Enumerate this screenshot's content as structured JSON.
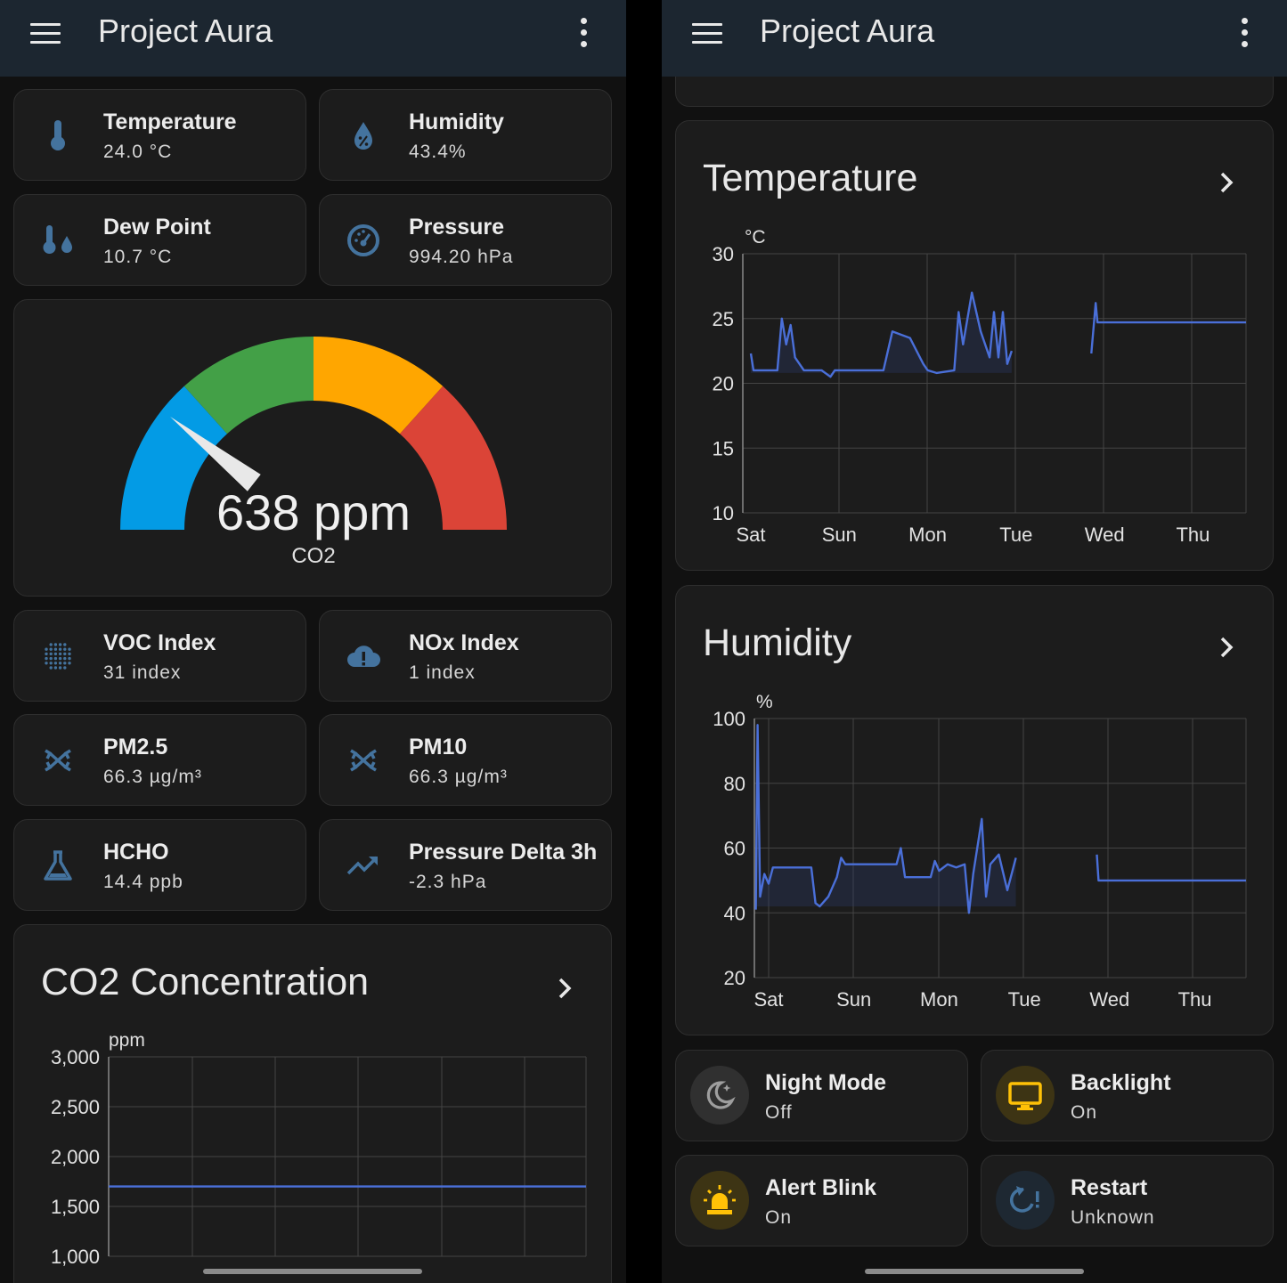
{
  "app": {
    "title": "Project Aura"
  },
  "left": {
    "tiles": [
      {
        "name": "Temperature",
        "state": "24.0 °C",
        "icon": "thermometer-icon"
      },
      {
        "name": "Humidity",
        "state": "43.4%",
        "icon": "water-percent-icon"
      },
      {
        "name": "Dew Point",
        "state": "10.7 °C",
        "icon": "dew-point-icon"
      },
      {
        "name": "Pressure",
        "state": "994.20 hPa",
        "icon": "gauge-icon"
      }
    ],
    "gauge": {
      "value": 638,
      "display": "638 ppm",
      "label": "CO2",
      "min": 0,
      "max": 3000,
      "segments": [
        {
          "from": 0,
          "to": 800,
          "color": "#039be5"
        },
        {
          "from": 800,
          "to": 1500,
          "color": "#43a047"
        },
        {
          "from": 1500,
          "to": 2200,
          "color": "#ffa600"
        },
        {
          "from": 2200,
          "to": 3000,
          "color": "#db4437"
        }
      ]
    },
    "tiles2": [
      {
        "name": "VOC Index",
        "state": "31 index",
        "icon": "dots-grid-icon"
      },
      {
        "name": "NOx Index",
        "state": "1 index",
        "icon": "cloud-alert-icon"
      },
      {
        "name": "PM2.5",
        "state": "66.3 µg/m³",
        "icon": "molecule-icon"
      },
      {
        "name": "PM10",
        "state": "66.3 µg/m³",
        "icon": "molecule-icon"
      },
      {
        "name": "HCHO",
        "state": "14.4 ppb",
        "icon": "flask-icon"
      },
      {
        "name": "Pressure Delta 3h",
        "state": "-2.3 hPa",
        "icon": "trending-up-icon"
      }
    ],
    "co2_card": {
      "title": "CO2 Concentration",
      "unit": "ppm"
    }
  },
  "right": {
    "temp_card": {
      "title": "Temperature",
      "unit": "°C"
    },
    "hum_card": {
      "title": "Humidity",
      "unit": "%"
    },
    "toggles": [
      {
        "name": "Night Mode",
        "state": "Off",
        "icon": "weather-night-icon",
        "color": "#9e9e9e",
        "bg": "#303030"
      },
      {
        "name": "Backlight",
        "state": "On",
        "icon": "monitor-icon",
        "color": "#ffc107",
        "bg": "#3d3414"
      },
      {
        "name": "Alert Blink",
        "state": "On",
        "icon": "alarm-light-icon",
        "color": "#ffc107",
        "bg": "#3d3414"
      },
      {
        "name": "Restart",
        "state": "Unknown",
        "icon": "restart-alert-icon",
        "color": "#44739e",
        "bg": "#1e2832"
      }
    ]
  },
  "chart_data": [
    {
      "type": "line",
      "title": "CO2 Concentration",
      "ylabel": "ppm",
      "ylim": [
        1000,
        3000
      ],
      "yticks": [
        "3,000",
        "2,500",
        "2,000",
        "1,500",
        "1,000"
      ],
      "grid": true,
      "series": [
        {
          "values": [
            1700,
            1700
          ]
        }
      ]
    },
    {
      "type": "line",
      "title": "Temperature",
      "ylabel": "°C",
      "ylim": [
        10,
        30
      ],
      "yticks": [
        "30",
        "25",
        "20",
        "15",
        "10"
      ],
      "categories": [
        "Sat",
        "Sun",
        "Mon",
        "Tue",
        "Wed",
        "Thu"
      ],
      "grid": true,
      "series": [
        {
          "segments": [
            {
              "x": [
                0.0,
                0.03,
                0.05,
                0.3,
                0.35,
                0.4,
                0.45,
                0.5,
                0.6,
                0.8,
                0.9,
                0.95,
                1.0,
                1.5,
                1.6,
                1.8,
                1.95,
                2.0,
                2.1,
                2.3,
                2.35,
                2.4,
                2.5,
                2.6,
                2.7,
                2.75,
                2.8,
                2.85,
                2.9,
                2.95
              ],
              "y": [
                22.3,
                21.0,
                21.0,
                21.0,
                25.0,
                23.0,
                24.5,
                22.0,
                21.0,
                21.0,
                20.5,
                21.0,
                21.0,
                21.0,
                24.0,
                23.5,
                21.5,
                21.0,
                20.8,
                21.0,
                25.5,
                23.0,
                27.0,
                24.0,
                22.0,
                25.5,
                22.0,
                25.5,
                21.5,
                22.5
              ]
            },
            {
              "x": [
                3.85,
                3.9,
                3.92,
                5.0,
                5.6
              ],
              "y": [
                22.3,
                26.2,
                24.7,
                24.7,
                24.7
              ]
            }
          ]
        }
      ]
    },
    {
      "type": "line",
      "title": "Humidity",
      "ylabel": "%",
      "ylim": [
        20,
        100
      ],
      "yticks": [
        "100",
        "80",
        "60",
        "40",
        "20"
      ],
      "categories": [
        "Sat",
        "Sun",
        "Mon",
        "Tue",
        "Wed",
        "Thu"
      ],
      "grid": true,
      "series": [
        {
          "segments": [
            {
              "x": [
                -0.15,
                -0.13,
                -0.1,
                -0.05,
                0.0,
                0.05,
                0.1,
                0.5,
                0.55,
                0.6,
                0.7,
                0.8,
                0.85,
                0.9,
                1.0,
                1.5,
                1.55,
                1.6,
                1.9,
                1.95,
                2.0,
                2.1,
                2.2,
                2.3,
                2.35,
                2.4,
                2.5,
                2.55,
                2.6,
                2.7,
                2.8,
                2.9
              ],
              "y": [
                41.0,
                98.0,
                45.0,
                52.0,
                49.0,
                54.0,
                54.0,
                54.0,
                43.0,
                42.0,
                45.0,
                51.0,
                57.0,
                55.0,
                55.0,
                55.0,
                60.0,
                51.0,
                51.0,
                56.0,
                53.0,
                55.0,
                54.0,
                55.0,
                40.0,
                52.0,
                69.0,
                45.0,
                55.0,
                58.0,
                47.0,
                57.0
              ]
            },
            {
              "x": [
                3.85,
                3.87,
                3.9,
                5.0,
                5.6
              ],
              "y": [
                58.0,
                50.0,
                50.0,
                50.0,
                50.0
              ]
            }
          ]
        }
      ]
    }
  ]
}
